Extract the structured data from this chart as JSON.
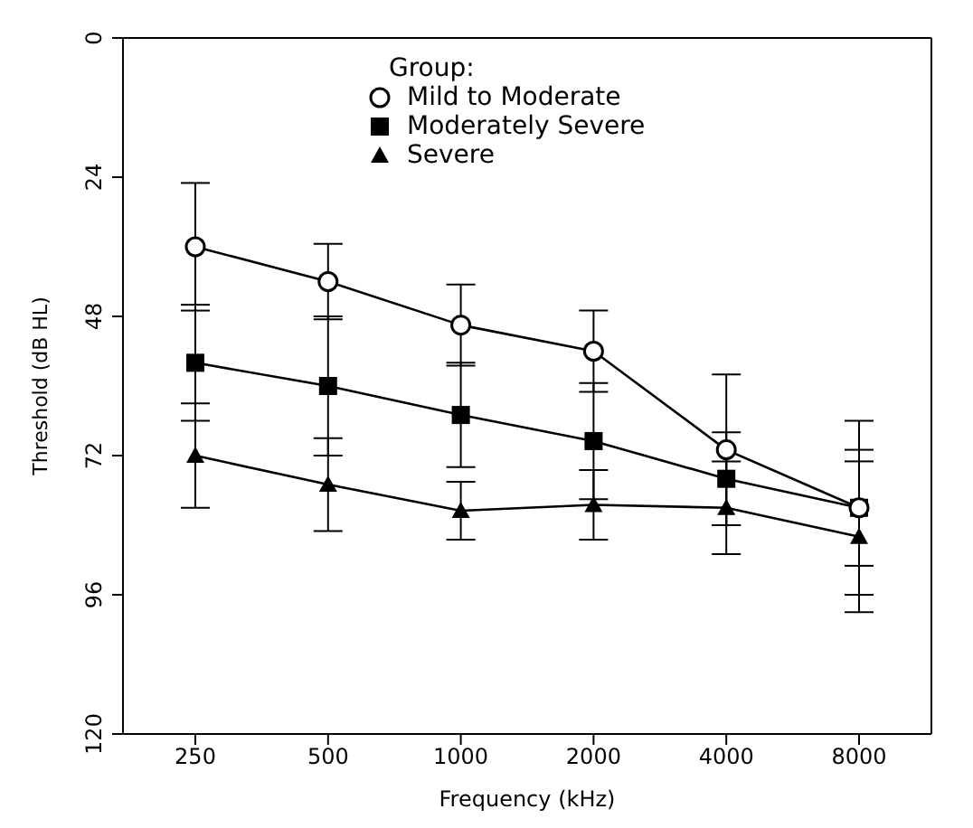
{
  "chart_data": {
    "type": "line",
    "xlabel": "Frequency (kHz)",
    "ylabel": "Threshold (dB HL)",
    "legend_title": "Group:",
    "legend": "top",
    "grid": false,
    "categories": [
      "250",
      "500",
      "1000",
      "2000",
      "4000",
      "8000"
    ],
    "ylim": [
      120,
      0
    ],
    "yticks": [
      0,
      24,
      48,
      72,
      96,
      120
    ],
    "series": [
      {
        "name": "Mild to Moderate",
        "color": "#000000",
        "marker": "circle",
        "values": [
          36,
          42,
          49.5,
          54,
          71,
          81
        ],
        "errors": [
          11,
          6.5,
          7,
          7,
          13,
          15
        ]
      },
      {
        "name": "Moderately Severe",
        "color": "#000000",
        "marker": "square",
        "values": [
          56,
          60,
          65,
          69.5,
          76,
          81
        ],
        "errors": [
          10,
          12,
          9,
          10,
          8,
          10
        ]
      },
      {
        "name": "Severe",
        "color": "#000000",
        "marker": "triangle",
        "values": [
          72,
          77,
          81.5,
          80.5,
          81,
          86
        ],
        "errors": [
          9,
          8,
          5,
          6,
          8,
          13
        ]
      }
    ]
  }
}
